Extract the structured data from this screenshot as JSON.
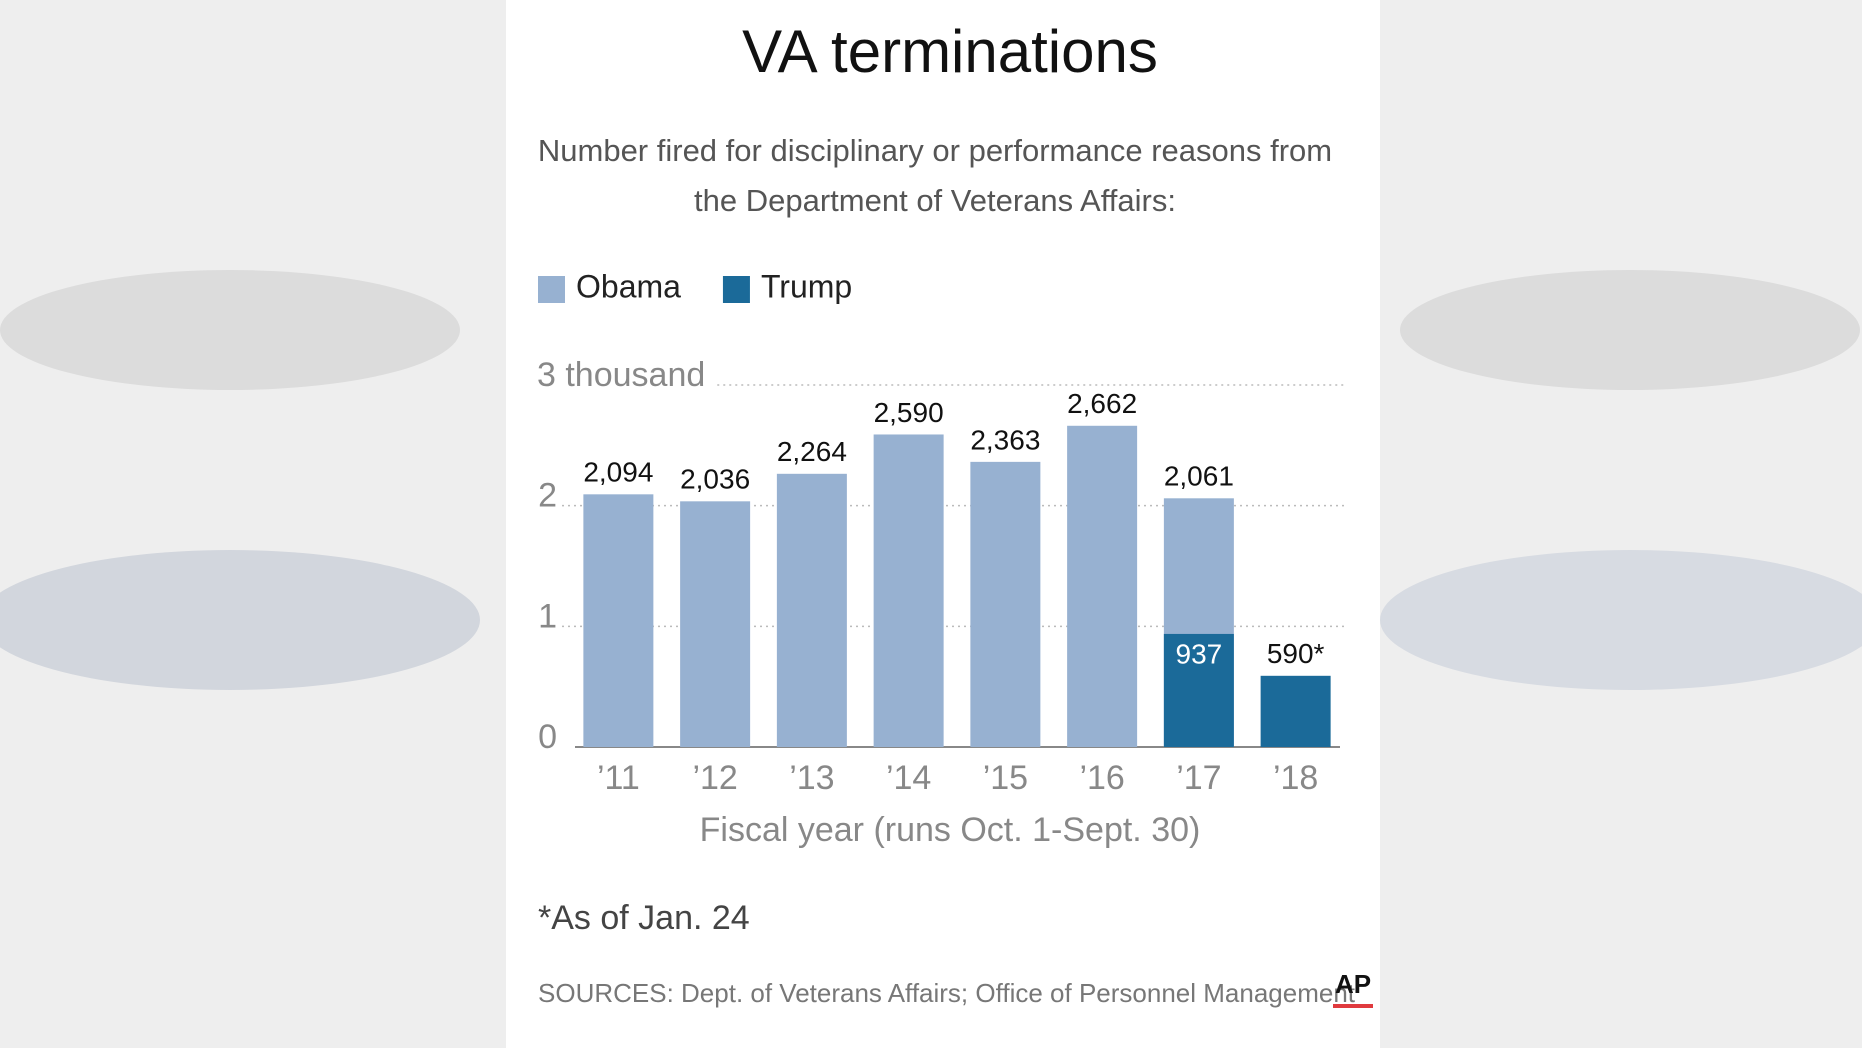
{
  "chart_data": {
    "type": "bar",
    "title": "VA terminations",
    "subtitle": [
      "Number fired for disciplinary or performance reasons from",
      "the Department of Veterans Affairs:"
    ],
    "categories": [
      "’11",
      "’12",
      "’13",
      "’14",
      "’15",
      "’16",
      "’17",
      "’18"
    ],
    "series": [
      {
        "name": "Obama",
        "color": "#97b1d1",
        "values": [
          2.094,
          2.036,
          2.264,
          2.59,
          2.363,
          2.662,
          2.061,
          null
        ],
        "value_labels": [
          "2,094",
          "2,036",
          "2,264",
          "2,590",
          "2,363",
          "2,662",
          "2,061",
          null
        ]
      },
      {
        "name": "Trump",
        "color": "#1b6a99",
        "values": [
          null,
          null,
          null,
          null,
          null,
          null,
          0.937,
          0.59
        ],
        "value_labels": [
          null,
          null,
          null,
          null,
          null,
          null,
          "937",
          "590*"
        ]
      }
    ],
    "ylim": [
      0,
      3
    ],
    "yticks": [
      0,
      1,
      2,
      {
        "value": 3,
        "label": "3 thousand"
      }
    ],
    "grid": true,
    "xlabel": "Fiscal year (runs Oct. 1-Sept. 30)",
    "footnote": "*As of Jan. 24",
    "source": "SOURCES:  Dept. of Veterans Affairs; Office of Personnel Management",
    "logo": "AP"
  }
}
